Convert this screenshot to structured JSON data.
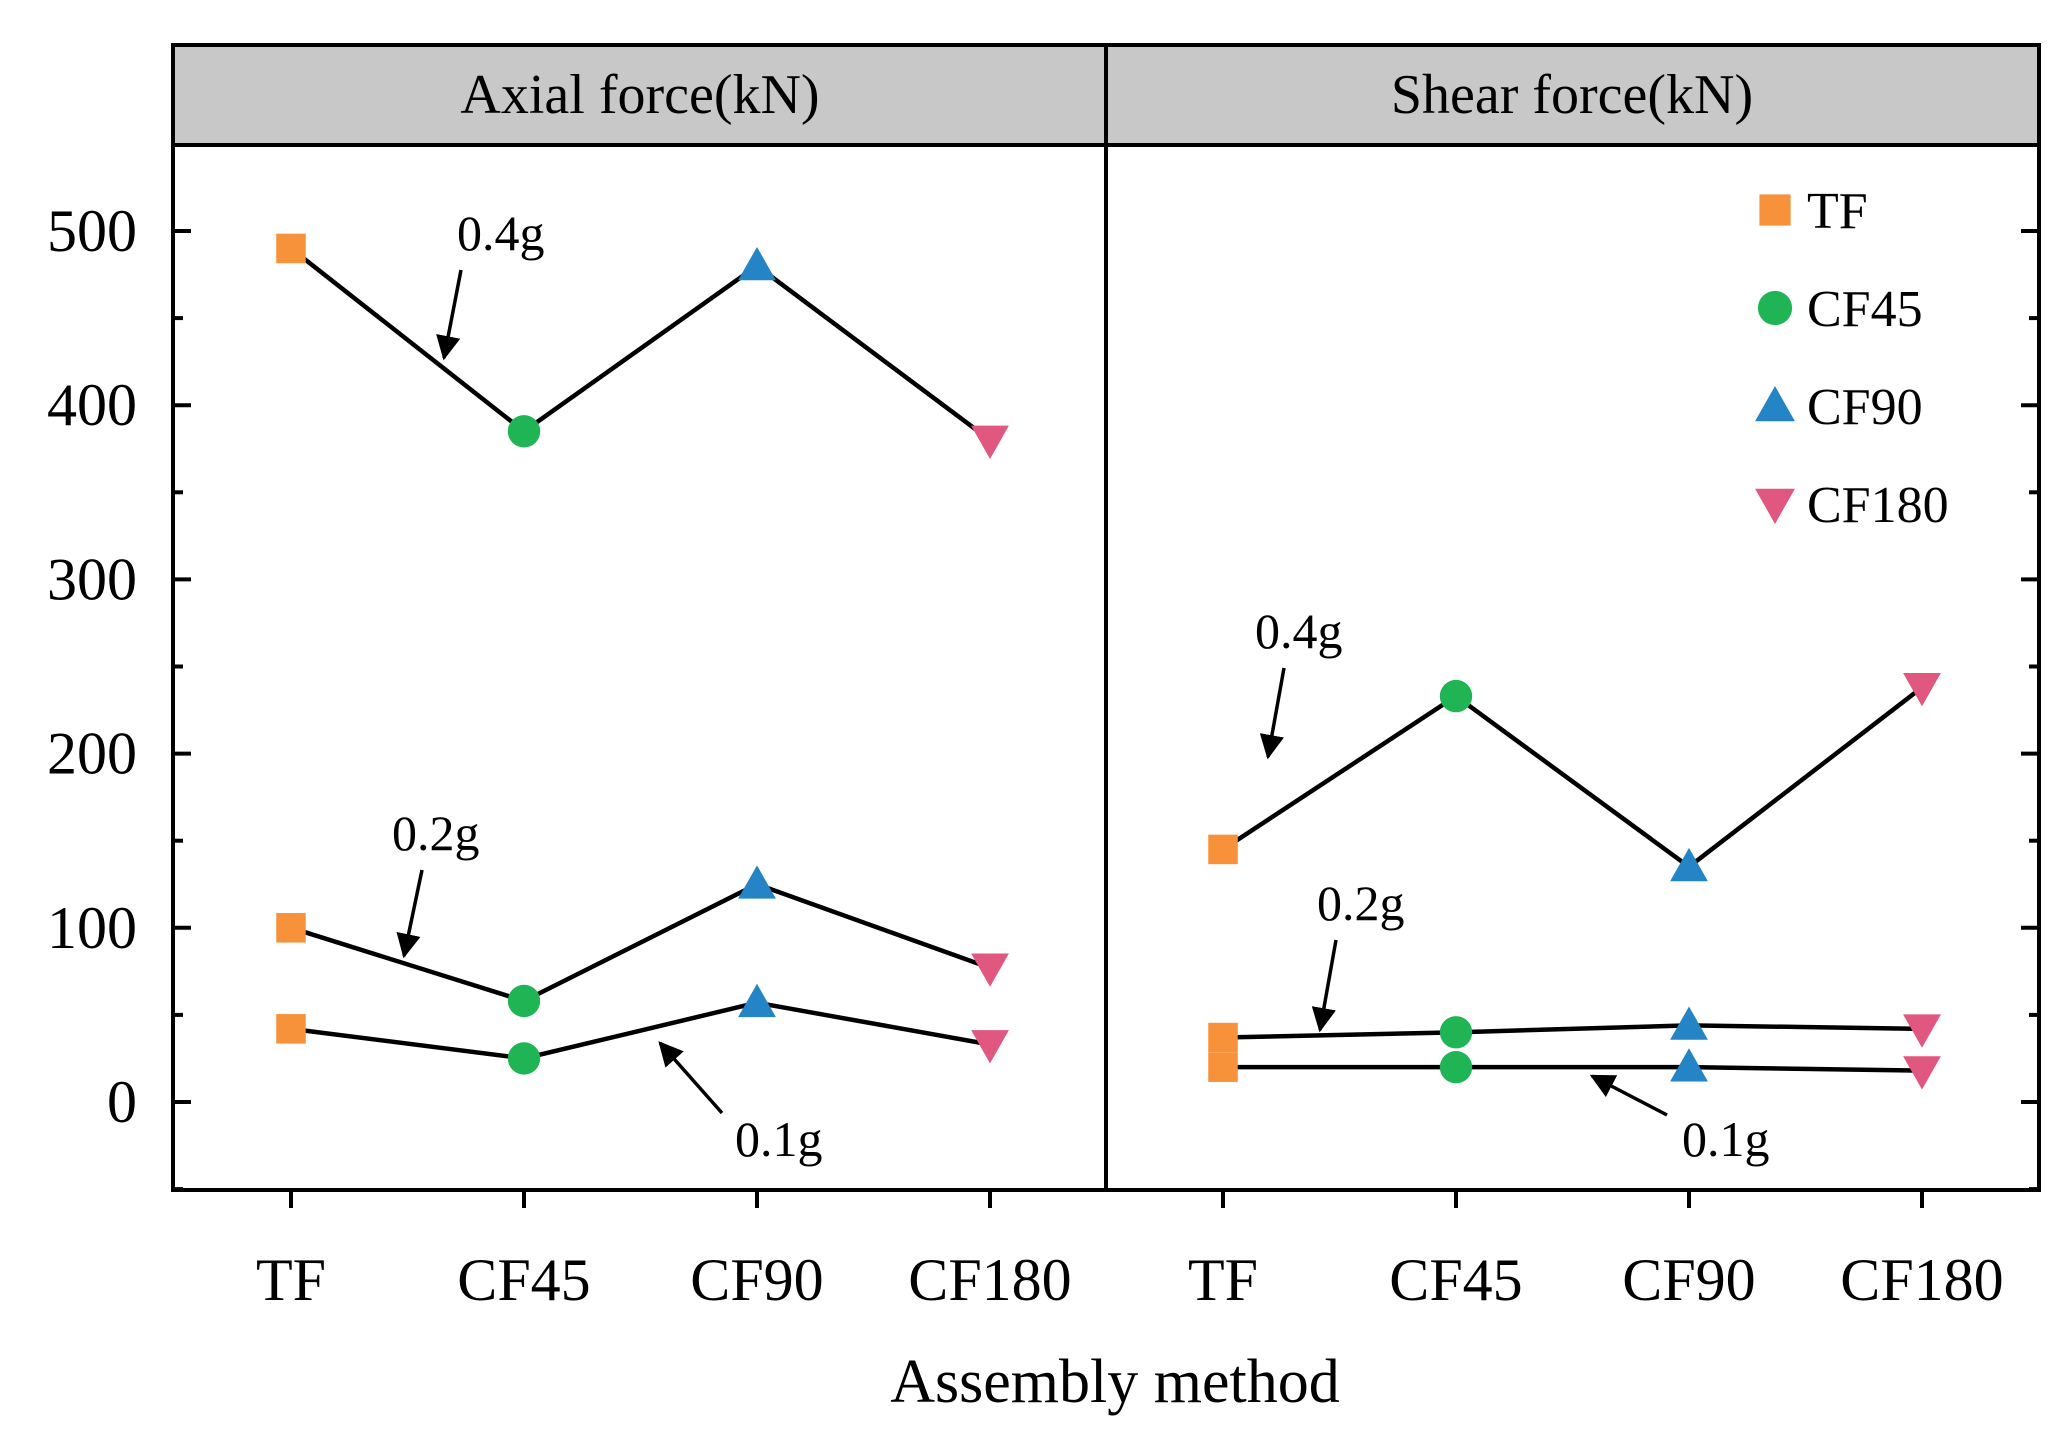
{
  "chart_data": {
    "type": "scatter",
    "xlabel": "Assembly method",
    "categories": [
      "TF",
      "CF45",
      "CF90",
      "CF180"
    ],
    "ylim": [
      -50,
      550
    ],
    "yticks": [
      0,
      100,
      200,
      300,
      400,
      500
    ],
    "colors": {
      "TF": "#f7923a",
      "CF45": "#1fb454",
      "CF90": "#2484c6",
      "CF180": "#e0577f"
    },
    "markers": {
      "TF": "square",
      "CF45": "circle",
      "CF90": "triangle-up",
      "CF180": "triangle-down"
    },
    "legend": {
      "placement": "top-right of right panel",
      "entries": [
        "TF",
        "CF45",
        "CF90",
        "CF180"
      ]
    },
    "panels": [
      {
        "title": "Axial force(kN)",
        "series": [
          {
            "name": "0.4g",
            "values": [
              490,
              385,
              480,
              380
            ],
            "line_from": 0
          },
          {
            "name": "0.2g",
            "values": [
              100,
              58,
              125,
              77
            ],
            "line_from": 0
          },
          {
            "name": "0.1g",
            "values": [
              42,
              25,
              57,
              33
            ],
            "line_from": 0
          }
        ],
        "annotations": [
          "0.4g",
          "0.2g",
          "0.1g"
        ]
      },
      {
        "title": "Shear force(kN)",
        "series": [
          {
            "name": "0.4g",
            "values": [
              145,
              233,
              135,
              238
            ],
            "line_from": 0
          },
          {
            "name": "0.2g",
            "values": [
              37,
              40,
              44,
              42
            ],
            "line_from": 0
          },
          {
            "name": "0.1g",
            "values": [
              20,
              20,
              20,
              18
            ],
            "line_from": 0
          }
        ],
        "annotations": [
          "0.4g",
          "0.2g",
          "0.1g"
        ]
      }
    ]
  }
}
